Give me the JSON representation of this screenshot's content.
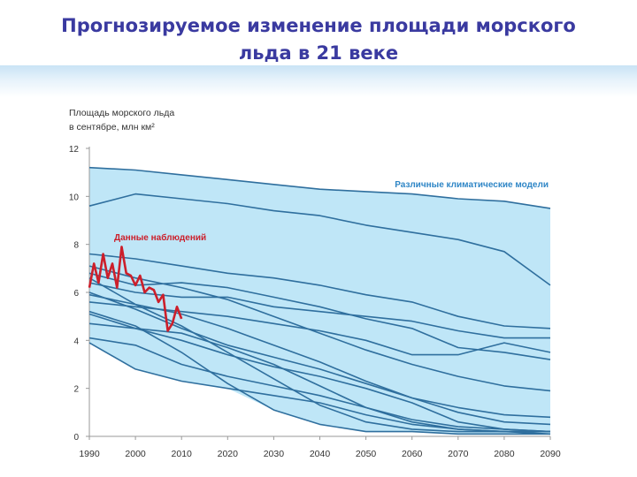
{
  "slide": {
    "title_line1": "Прогнозируемое изменение площади морского",
    "title_line2": "льда в 21 веке"
  },
  "chart_data": {
    "type": "line",
    "ylabel_line1": "Площадь морского льда",
    "ylabel_line2": "в сентябре, млн км²",
    "xlim": [
      1990,
      2090
    ],
    "ylim": [
      0,
      12
    ],
    "x_ticks": [
      1990,
      2000,
      2010,
      2020,
      2030,
      2040,
      2050,
      2060,
      2070,
      2080,
      2090
    ],
    "y_ticks": [
      0,
      2,
      4,
      6,
      8,
      10,
      12
    ],
    "grid": false,
    "model_annotation": "Различные климатические модели",
    "observed_annotation": "Данные наблюдений",
    "colors": {
      "band_fill": "#bfe6f7",
      "model_line": "#2f6f9e",
      "observed_line": "#cc1f2b",
      "model_label": "#2f86c6",
      "observed_label": "#cc1f2b",
      "title": "#3a3aa0"
    },
    "model_x": [
      1990,
      2000,
      2010,
      2020,
      2030,
      2040,
      2050,
      2060,
      2070,
      2080,
      2090
    ],
    "models": [
      [
        11.2,
        11.1,
        10.9,
        10.7,
        10.5,
        10.3,
        10.2,
        10.1,
        9.9,
        9.8,
        9.5
      ],
      [
        9.6,
        10.1,
        9.9,
        9.7,
        9.4,
        9.2,
        8.8,
        8.5,
        8.2,
        7.7,
        6.3
      ],
      [
        7.6,
        7.4,
        7.1,
        6.8,
        6.6,
        6.3,
        5.9,
        5.6,
        5.0,
        4.6,
        4.5
      ],
      [
        6.4,
        6.0,
        5.8,
        5.8,
        5.4,
        5.2,
        5.0,
        4.8,
        4.4,
        4.1,
        4.1
      ],
      [
        6.8,
        6.3,
        6.4,
        6.2,
        5.8,
        5.4,
        4.9,
        4.5,
        3.7,
        3.5,
        3.2
      ],
      [
        5.6,
        5.4,
        5.2,
        5.0,
        4.7,
        4.4,
        4.0,
        3.4,
        3.4,
        3.9,
        3.5
      ],
      [
        7.1,
        6.6,
        6.2,
        5.7,
        5.0,
        4.3,
        3.6,
        3.0,
        2.5,
        2.1,
        1.9
      ],
      [
        5.9,
        5.5,
        5.1,
        4.5,
        3.8,
        3.1,
        2.3,
        1.6,
        1.2,
        0.9,
        0.8
      ],
      [
        6.0,
        5.3,
        4.5,
        3.8,
        3.3,
        2.8,
        2.2,
        1.6,
        1.0,
        0.6,
        0.5
      ],
      [
        5.1,
        4.5,
        4.0,
        3.4,
        2.9,
        2.5,
        2.0,
        1.4,
        0.6,
        0.3,
        0.2
      ],
      [
        4.7,
        4.5,
        4.3,
        3.7,
        3.0,
        2.1,
        1.2,
        0.6,
        0.3,
        0.2,
        0.2
      ],
      [
        4.1,
        3.8,
        3.0,
        2.5,
        2.1,
        1.7,
        1.2,
        0.7,
        0.4,
        0.3,
        0.2
      ],
      [
        6.6,
        5.5,
        4.6,
        3.5,
        2.4,
        1.3,
        0.6,
        0.3,
        0.2,
        0.2,
        0.1
      ],
      [
        5.2,
        4.6,
        3.5,
        2.2,
        1.1,
        0.5,
        0.2,
        0.2,
        0.1,
        0.1,
        0.1
      ],
      [
        3.9,
        2.8,
        2.3,
        2.0,
        1.7,
        1.4,
        0.9,
        0.5,
        0.3,
        0.2,
        0.2
      ]
    ],
    "observed_x": [
      1990,
      1991,
      1992,
      1993,
      1994,
      1995,
      1996,
      1997,
      1998,
      1999,
      2000,
      2001,
      2002,
      2003,
      2004,
      2005,
      2006,
      2007,
      2008,
      2009,
      2010
    ],
    "observed_y": [
      6.2,
      7.2,
      6.4,
      7.6,
      6.6,
      7.2,
      6.2,
      7.9,
      6.8,
      6.7,
      6.3,
      6.7,
      6.0,
      6.2,
      6.1,
      5.6,
      5.9,
      4.4,
      4.7,
      5.4,
      4.9
    ]
  }
}
